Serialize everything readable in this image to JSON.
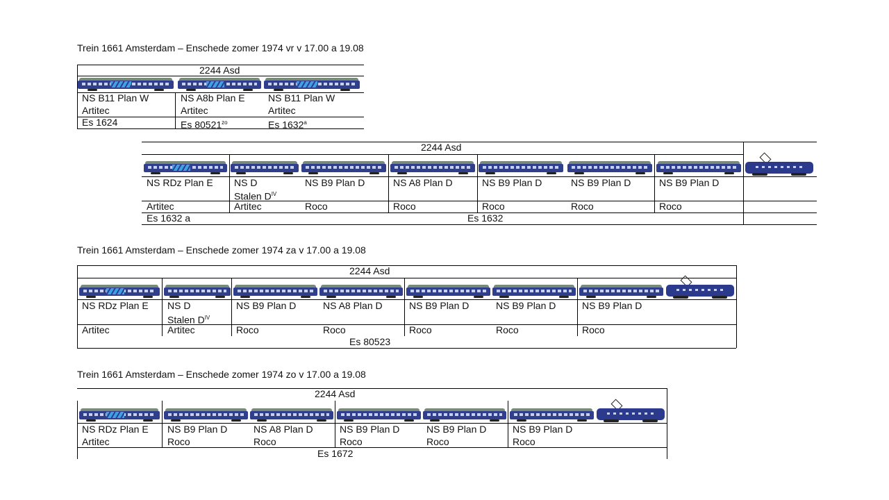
{
  "t1": {
    "title": "Trein 1661 Amsterdam – Enschede zomer 1974 vr v 17.00  a 19.08",
    "loco": "2244 Asd",
    "cars": [
      {
        "name": "NS B11 Plan W",
        "maker": "Artitec",
        "es": "Es 1624"
      },
      {
        "name": "NS A8b Plan E",
        "maker": "Artitec",
        "es": "Es 80521",
        "es_sup": "zo"
      },
      {
        "name": "NS B11 Plan W",
        "maker": "Artitec",
        "es": "Es 1632",
        "es_sup": "a"
      }
    ]
  },
  "t2": {
    "loco": "2244 Asd",
    "cars": [
      {
        "name": "NS RDz Plan E",
        "maker": "Artitec"
      },
      {
        "name": "NS D",
        "name2": "Stalen D",
        "name2_sup": "IV",
        "maker": "Artitec"
      },
      {
        "name": "NS B9 Plan D",
        "maker": "Roco"
      },
      {
        "name": "NS A8 Plan D",
        "maker": "Roco"
      },
      {
        "name": "NS B9 Plan D",
        "maker": "Roco"
      },
      {
        "name": "NS B9 Plan D",
        "maker": "Roco"
      },
      {
        "name": "NS B9 Plan D",
        "maker": "Roco"
      }
    ],
    "es_a": "Es 1632 a",
    "es_b": "Es 1632"
  },
  "t3": {
    "title": "Trein 1661 Amsterdam – Enschede zomer 1974 za v 17.00  a 19.08",
    "loco": "2244 Asd",
    "cars": [
      {
        "name": "NS RDz Plan E",
        "maker": "Artitec"
      },
      {
        "name": "NS D",
        "name2": "Stalen D",
        "name2_sup": "IV",
        "maker": "Artitec"
      },
      {
        "name": "NS B9 Plan D",
        "maker": "Roco"
      },
      {
        "name": "NS A8 Plan D",
        "maker": "Roco"
      },
      {
        "name": "NS B9 Plan D",
        "maker": "Roco"
      },
      {
        "name": "NS B9 Plan D",
        "maker": "Roco"
      },
      {
        "name": "NS B9 Plan D",
        "maker": "Roco"
      }
    ],
    "es": "Es 80523"
  },
  "t4": {
    "title": "Trein 1661 Amsterdam – Enschede zomer 1974 zo v 17.00  a 19.08",
    "loco": "2244 Asd",
    "cars": [
      {
        "name": "NS RDz Plan E",
        "maker": "Artitec"
      },
      {
        "name": "NS B9 Plan D",
        "maker": "Roco"
      },
      {
        "name": "NS A8 Plan D",
        "maker": "Roco"
      },
      {
        "name": "NS B9 Plan D",
        "maker": "Roco"
      },
      {
        "name": "NS B9 Plan D",
        "maker": "Roco"
      },
      {
        "name": "NS B9 Plan D",
        "maker": "Roco"
      }
    ],
    "es": "Es 1672"
  },
  "colors": {
    "coach_blue": "#2f3f8e",
    "stripe_blue": "#3fa0e6",
    "roof_grey": "#7a8a78"
  },
  "icons": [
    "coach-icon",
    "locomotive-icon"
  ]
}
